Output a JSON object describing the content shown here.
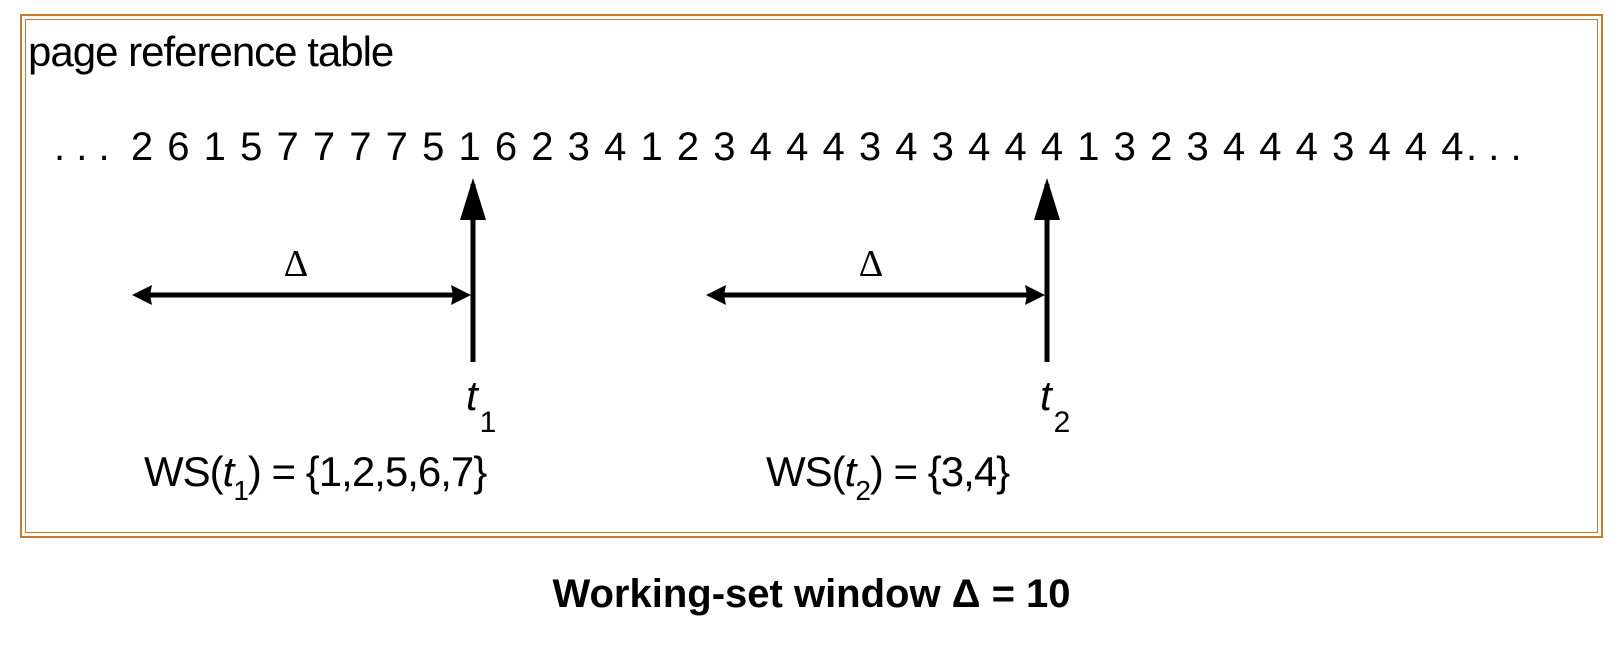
{
  "title": "page reference table",
  "leading_ellipsis": ". . .",
  "trailing_ellipsis": ". . .",
  "reference_string": [
    2,
    6,
    1,
    5,
    7,
    7,
    7,
    7,
    5,
    1,
    6,
    2,
    3,
    4,
    1,
    2,
    3,
    4,
    4,
    4,
    3,
    4,
    3,
    4,
    4,
    4,
    1,
    3,
    2,
    3,
    4,
    4,
    4,
    3,
    4,
    4,
    4
  ],
  "windows": [
    {
      "delta_label": "Δ",
      "time_var": "t",
      "time_sub": "1",
      "ws_prefix": "WS(",
      "ws_var": "t",
      "ws_sub": "1",
      "ws_suffix": ") = {1,2,5,6,7}",
      "end_index": 9
    },
    {
      "delta_label": "Δ",
      "time_var": "t",
      "time_sub": "2",
      "ws_prefix": "WS(",
      "ws_var": "t",
      "ws_sub": "2",
      "ws_suffix": ") = {3,4}",
      "end_index": 25
    }
  ],
  "caption": "Working-set window Δ  = 10",
  "colors": {
    "border": "#c8792e",
    "ink": "#000000"
  }
}
